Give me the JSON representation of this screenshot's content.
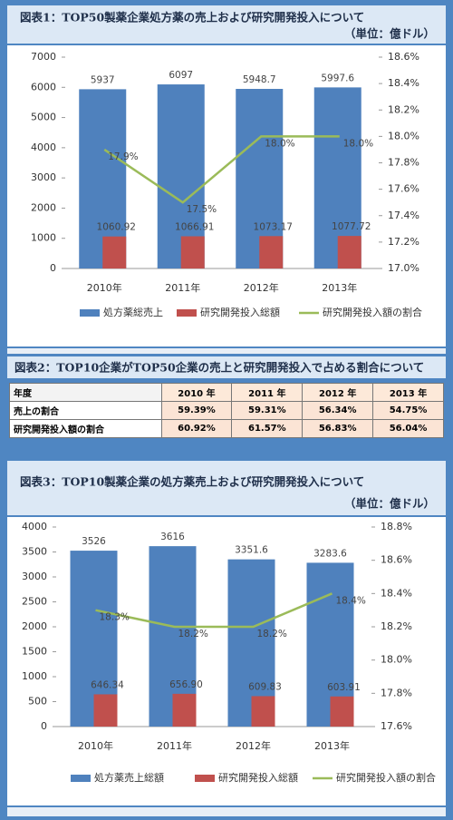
{
  "chart_data": [
    {
      "type": "bar",
      "title": "図表1：TOP50製薬企業処方薬の売上および研究開発投入について",
      "subtitle": "（単位：億ドル）",
      "categories": [
        "2010年",
        "2011年",
        "2012年",
        "2013年"
      ],
      "series": [
        {
          "name": "処方薬総売上",
          "color": "#4f81bd",
          "values": [
            5937,
            6097,
            5948.7,
            5997.6
          ]
        },
        {
          "name": "研究開発投入総額",
          "color": "#c0504d",
          "values": [
            1060.92,
            1066.91,
            1073.17,
            1077.72
          ]
        },
        {
          "name": "研究開発投入額の割合",
          "type": "line",
          "axis": "y2",
          "color": "#9bbb59",
          "values": [
            17.9,
            17.5,
            18.0,
            18.0
          ],
          "value_labels": [
            "17.9%",
            "17.5%",
            "18.0%",
            "18.0%"
          ]
        }
      ],
      "ylim": [
        0,
        7000
      ],
      "yticks": [
        0,
        1000,
        2000,
        3000,
        4000,
        5000,
        6000,
        7000
      ],
      "y2lim": [
        17.0,
        18.6
      ],
      "y2ticks": [
        {
          "value": 17.0,
          "label": "17.0%"
        },
        {
          "value": 17.2,
          "label": "17.2%"
        },
        {
          "value": 17.4,
          "label": "17.4%"
        },
        {
          "value": 17.6,
          "label": "17.6%"
        },
        {
          "value": 17.8,
          "label": "17.8%"
        },
        {
          "value": 18.0,
          "label": "18.0%"
        },
        {
          "value": 18.2,
          "label": "18.2%"
        },
        {
          "value": 18.4,
          "label": "18.4%"
        },
        {
          "value": 18.6,
          "label": "18.6%"
        }
      ]
    },
    {
      "type": "bar",
      "title": "図表3：TOP10製薬企業の処方薬売上および研究開発投入について",
      "subtitle": "（単位：億ドル）",
      "categories": [
        "2010年",
        "2011年",
        "2012年",
        "2013年"
      ],
      "series": [
        {
          "name": "処方薬売上総額",
          "color": "#4f81bd",
          "values": [
            3526,
            3616,
            3351.6,
            3283.6
          ]
        },
        {
          "name": "研究開発投入総額",
          "color": "#c0504d",
          "values": [
            646.34,
            656.9,
            609.83,
            603.91
          ],
          "value_labels": [
            "646.34",
            "656.90",
            "609.83",
            "603.91"
          ]
        },
        {
          "name": "研究開発投入額の割合",
          "type": "line",
          "axis": "y2",
          "color": "#9bbb59",
          "values": [
            18.3,
            18.2,
            18.2,
            18.4
          ],
          "value_labels": [
            "18.3%",
            "18.2%",
            "18.2%",
            "18.4%"
          ]
        }
      ],
      "ylim": [
        0,
        4000
      ],
      "yticks": [
        0,
        500,
        1000,
        1500,
        2000,
        2500,
        3000,
        3500,
        4000
      ],
      "y2lim": [
        17.6,
        18.8
      ],
      "y2ticks": [
        {
          "value": 17.6,
          "label": "17.6%"
        },
        {
          "value": 17.8,
          "label": "17.8%"
        },
        {
          "value": 18.0,
          "label": "18.0%"
        },
        {
          "value": 18.2,
          "label": "18.2%"
        },
        {
          "value": 18.4,
          "label": "18.4%"
        },
        {
          "value": 18.6,
          "label": "18.6%"
        },
        {
          "value": 18.8,
          "label": "18.8%"
        }
      ]
    }
  ],
  "table": {
    "title": "図表2：TOP10企業がTOP50企業の売上と研究開発投入で占める割合について",
    "header": [
      "年度",
      "2010 年",
      "2011 年",
      "2012 年",
      "2013 年"
    ],
    "rows": [
      [
        "売上の割合",
        "59.39%",
        "59.31%",
        "56.34%",
        "54.75%"
      ],
      [
        "研究開発投入額の割合",
        "60.92%",
        "61.57%",
        "56.83%",
        "56.04%"
      ]
    ]
  }
}
